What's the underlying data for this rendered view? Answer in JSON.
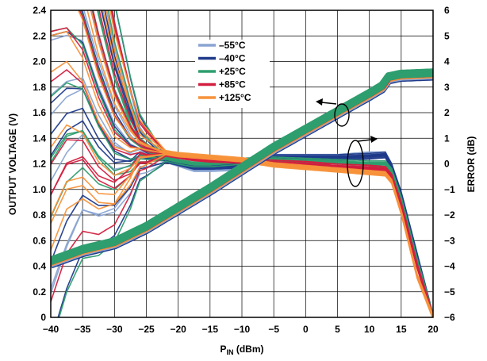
{
  "chart_data": {
    "type": "line",
    "title": "",
    "xlabel": {
      "main": "P",
      "sub": "IN",
      "rest": " (dBm)"
    },
    "ylabel": "OUTPUT VOLTAGE (V)",
    "y2label": "ERROR (dB)",
    "xlim": [
      -40,
      20
    ],
    "ylim": [
      0,
      2.4
    ],
    "y2lim": [
      -6,
      6
    ],
    "grid": true,
    "legend_position": "top-center",
    "x_ticks": [
      "−40",
      "−35",
      "−30",
      "−25",
      "−20",
      "−15",
      "−10",
      "−5",
      "0",
      "5",
      "10",
      "15",
      "20"
    ],
    "y_ticks": [
      "0",
      "0.2",
      "0.4",
      "0.6",
      "0.8",
      "1.0",
      "1.2",
      "1.4",
      "1.6",
      "1.8",
      "2.0",
      "2.2",
      "2.4"
    ],
    "y2_ticks": [
      "−6",
      "−5",
      "−4",
      "−3",
      "−2",
      "−1",
      "0",
      "1",
      "2",
      "3",
      "4",
      "5",
      "6"
    ],
    "series": [
      {
        "name": "–55°C",
        "color": "#8aa4d2"
      },
      {
        "name": "–40°C",
        "color": "#1f3a8a"
      },
      {
        "name": "+25°C",
        "color": "#2e9e6e"
      },
      {
        "name": "+85°C",
        "color": "#d31f3f"
      },
      {
        "name": "+125°C",
        "color": "#f7923a"
      }
    ],
    "output_voltage_curve": {
      "axis": "left",
      "x": [
        -40,
        -35,
        -30,
        -25,
        -20,
        -15,
        -10,
        -5,
        0,
        5,
        10,
        12,
        13,
        15,
        20
      ],
      "y": [
        0.43,
        0.52,
        0.58,
        0.7,
        0.85,
        1.0,
        1.16,
        1.32,
        1.46,
        1.6,
        1.74,
        1.8,
        1.87,
        1.89,
        1.9
      ]
    },
    "error_curves": {
      "axis": "right",
      "x": [
        -40,
        -37.5,
        -35,
        -32.5,
        -30,
        -27.5,
        -25,
        -22.5,
        -20,
        -17.5,
        -15,
        -10,
        -5,
        0,
        5,
        10,
        12.5,
        13.5,
        15,
        17.5,
        20
      ],
      "series_error": [
        {
          "name": "–55°C",
          "y": [
            6,
            6,
            5.6,
            3.6,
            2.0,
            1.0,
            0.5,
            0.2,
            0.0,
            -0.2,
            -0.2,
            -0.15,
            0.3,
            0.3,
            0.3,
            0.4,
            0.4,
            -0.1,
            -1.2,
            -3.6,
            -6
          ]
        },
        {
          "name": "–40°C",
          "y": [
            6,
            6,
            5.4,
            3.4,
            1.8,
            0.9,
            0.5,
            0.2,
            0.05,
            -0.1,
            -0.1,
            -0.05,
            0.25,
            0.25,
            0.25,
            0.3,
            0.35,
            -0.1,
            -1.2,
            -3.6,
            -6
          ]
        },
        {
          "name": "+25°C",
          "y": [
            6,
            6,
            5.2,
            3.2,
            1.6,
            0.8,
            0.5,
            0.25,
            0.1,
            0.0,
            0.0,
            0.1,
            0.15,
            0.1,
            0.05,
            0.0,
            0.0,
            -0.3,
            -1.4,
            -3.8,
            -6
          ]
        },
        {
          "name": "+85°C",
          "y": [
            6,
            6,
            5.0,
            3.0,
            1.5,
            0.8,
            0.5,
            0.4,
            0.3,
            0.2,
            0.15,
            0.1,
            0.05,
            0.0,
            -0.1,
            -0.15,
            -0.2,
            -0.5,
            -1.6,
            -4.0,
            -6
          ]
        },
        {
          "name": "+125°C",
          "y": [
            6,
            6,
            4.8,
            2.8,
            1.4,
            0.8,
            0.6,
            0.45,
            0.35,
            0.3,
            0.25,
            0.15,
            -0.05,
            -0.15,
            -0.25,
            -0.35,
            -0.4,
            -0.7,
            -1.9,
            -4.4,
            -6
          ]
        }
      ]
    },
    "annotations": [
      {
        "type": "ellipse-arrow",
        "points_to": "left axis",
        "x": 6,
        "y_left": 1.58
      },
      {
        "type": "ellipse-arrow",
        "points_to": "right axis",
        "x": 8.5,
        "y_left": 1.16
      }
    ]
  }
}
